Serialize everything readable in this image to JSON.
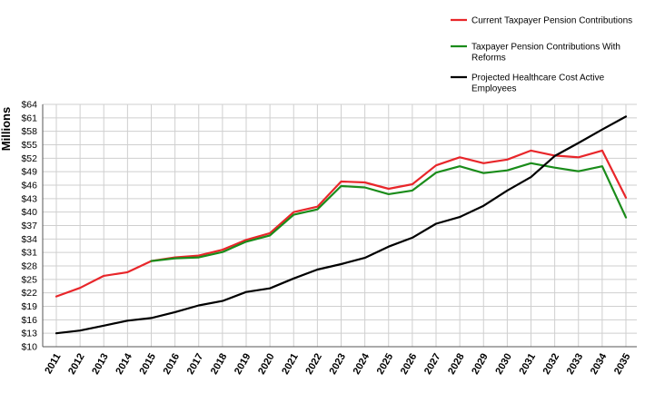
{
  "chart_data": {
    "type": "line",
    "title": "",
    "xlabel": "",
    "ylabel": "Millions",
    "ylim": [
      10,
      64
    ],
    "yticks": [
      "$10",
      "$13",
      "$16",
      "$19",
      "$22",
      "$25",
      "$28",
      "$31",
      "$34",
      "$37",
      "$40",
      "$43",
      "$46",
      "$49",
      "$52",
      "$55",
      "$58",
      "$61",
      "$64"
    ],
    "ytick_values": [
      10,
      13,
      16,
      19,
      22,
      25,
      28,
      31,
      34,
      37,
      40,
      43,
      46,
      49,
      52,
      55,
      58,
      61,
      64
    ],
    "categories": [
      "2011",
      "2012",
      "2013",
      "2014",
      "2015",
      "2016",
      "2017",
      "2018",
      "2019",
      "2020",
      "2021",
      "2022",
      "2023",
      "2024",
      "2025",
      "2026",
      "2027",
      "2028",
      "2029",
      "2030",
      "2031",
      "2032",
      "2033",
      "2034",
      "2035"
    ],
    "grid": true,
    "legend_position": "top-right",
    "series": [
      {
        "name": "Current Taxpayer Pension Contributions",
        "color": "#e8262a",
        "values": [
          21.2,
          23.1,
          25.8,
          26.6,
          29.1,
          29.9,
          30.3,
          31.6,
          33.8,
          35.3,
          40.0,
          41.2,
          46.8,
          46.6,
          45.2,
          46.2,
          50.4,
          52.2,
          50.9,
          51.7,
          53.7,
          52.6,
          52.2,
          53.7,
          43.2
        ]
      },
      {
        "name": "Taxpayer Pension Contributions With Reforms",
        "color": "#1a8c1a",
        "values": [
          null,
          null,
          null,
          null,
          29.1,
          29.7,
          29.9,
          31.1,
          33.4,
          34.8,
          39.4,
          40.6,
          45.8,
          45.5,
          44.0,
          44.8,
          48.8,
          50.2,
          48.7,
          49.3,
          50.9,
          49.9,
          49.1,
          50.2,
          38.8
        ]
      },
      {
        "name": "Projected Healthcare Cost Active Employees",
        "color": "#000000",
        "values": [
          13.0,
          13.6,
          14.7,
          15.8,
          16.4,
          17.7,
          19.2,
          20.2,
          22.2,
          23.0,
          25.2,
          27.2,
          28.4,
          29.8,
          32.3,
          34.3,
          37.4,
          38.9,
          41.4,
          44.8,
          47.8,
          52.5,
          55.4,
          58.4,
          61.3
        ]
      }
    ]
  }
}
